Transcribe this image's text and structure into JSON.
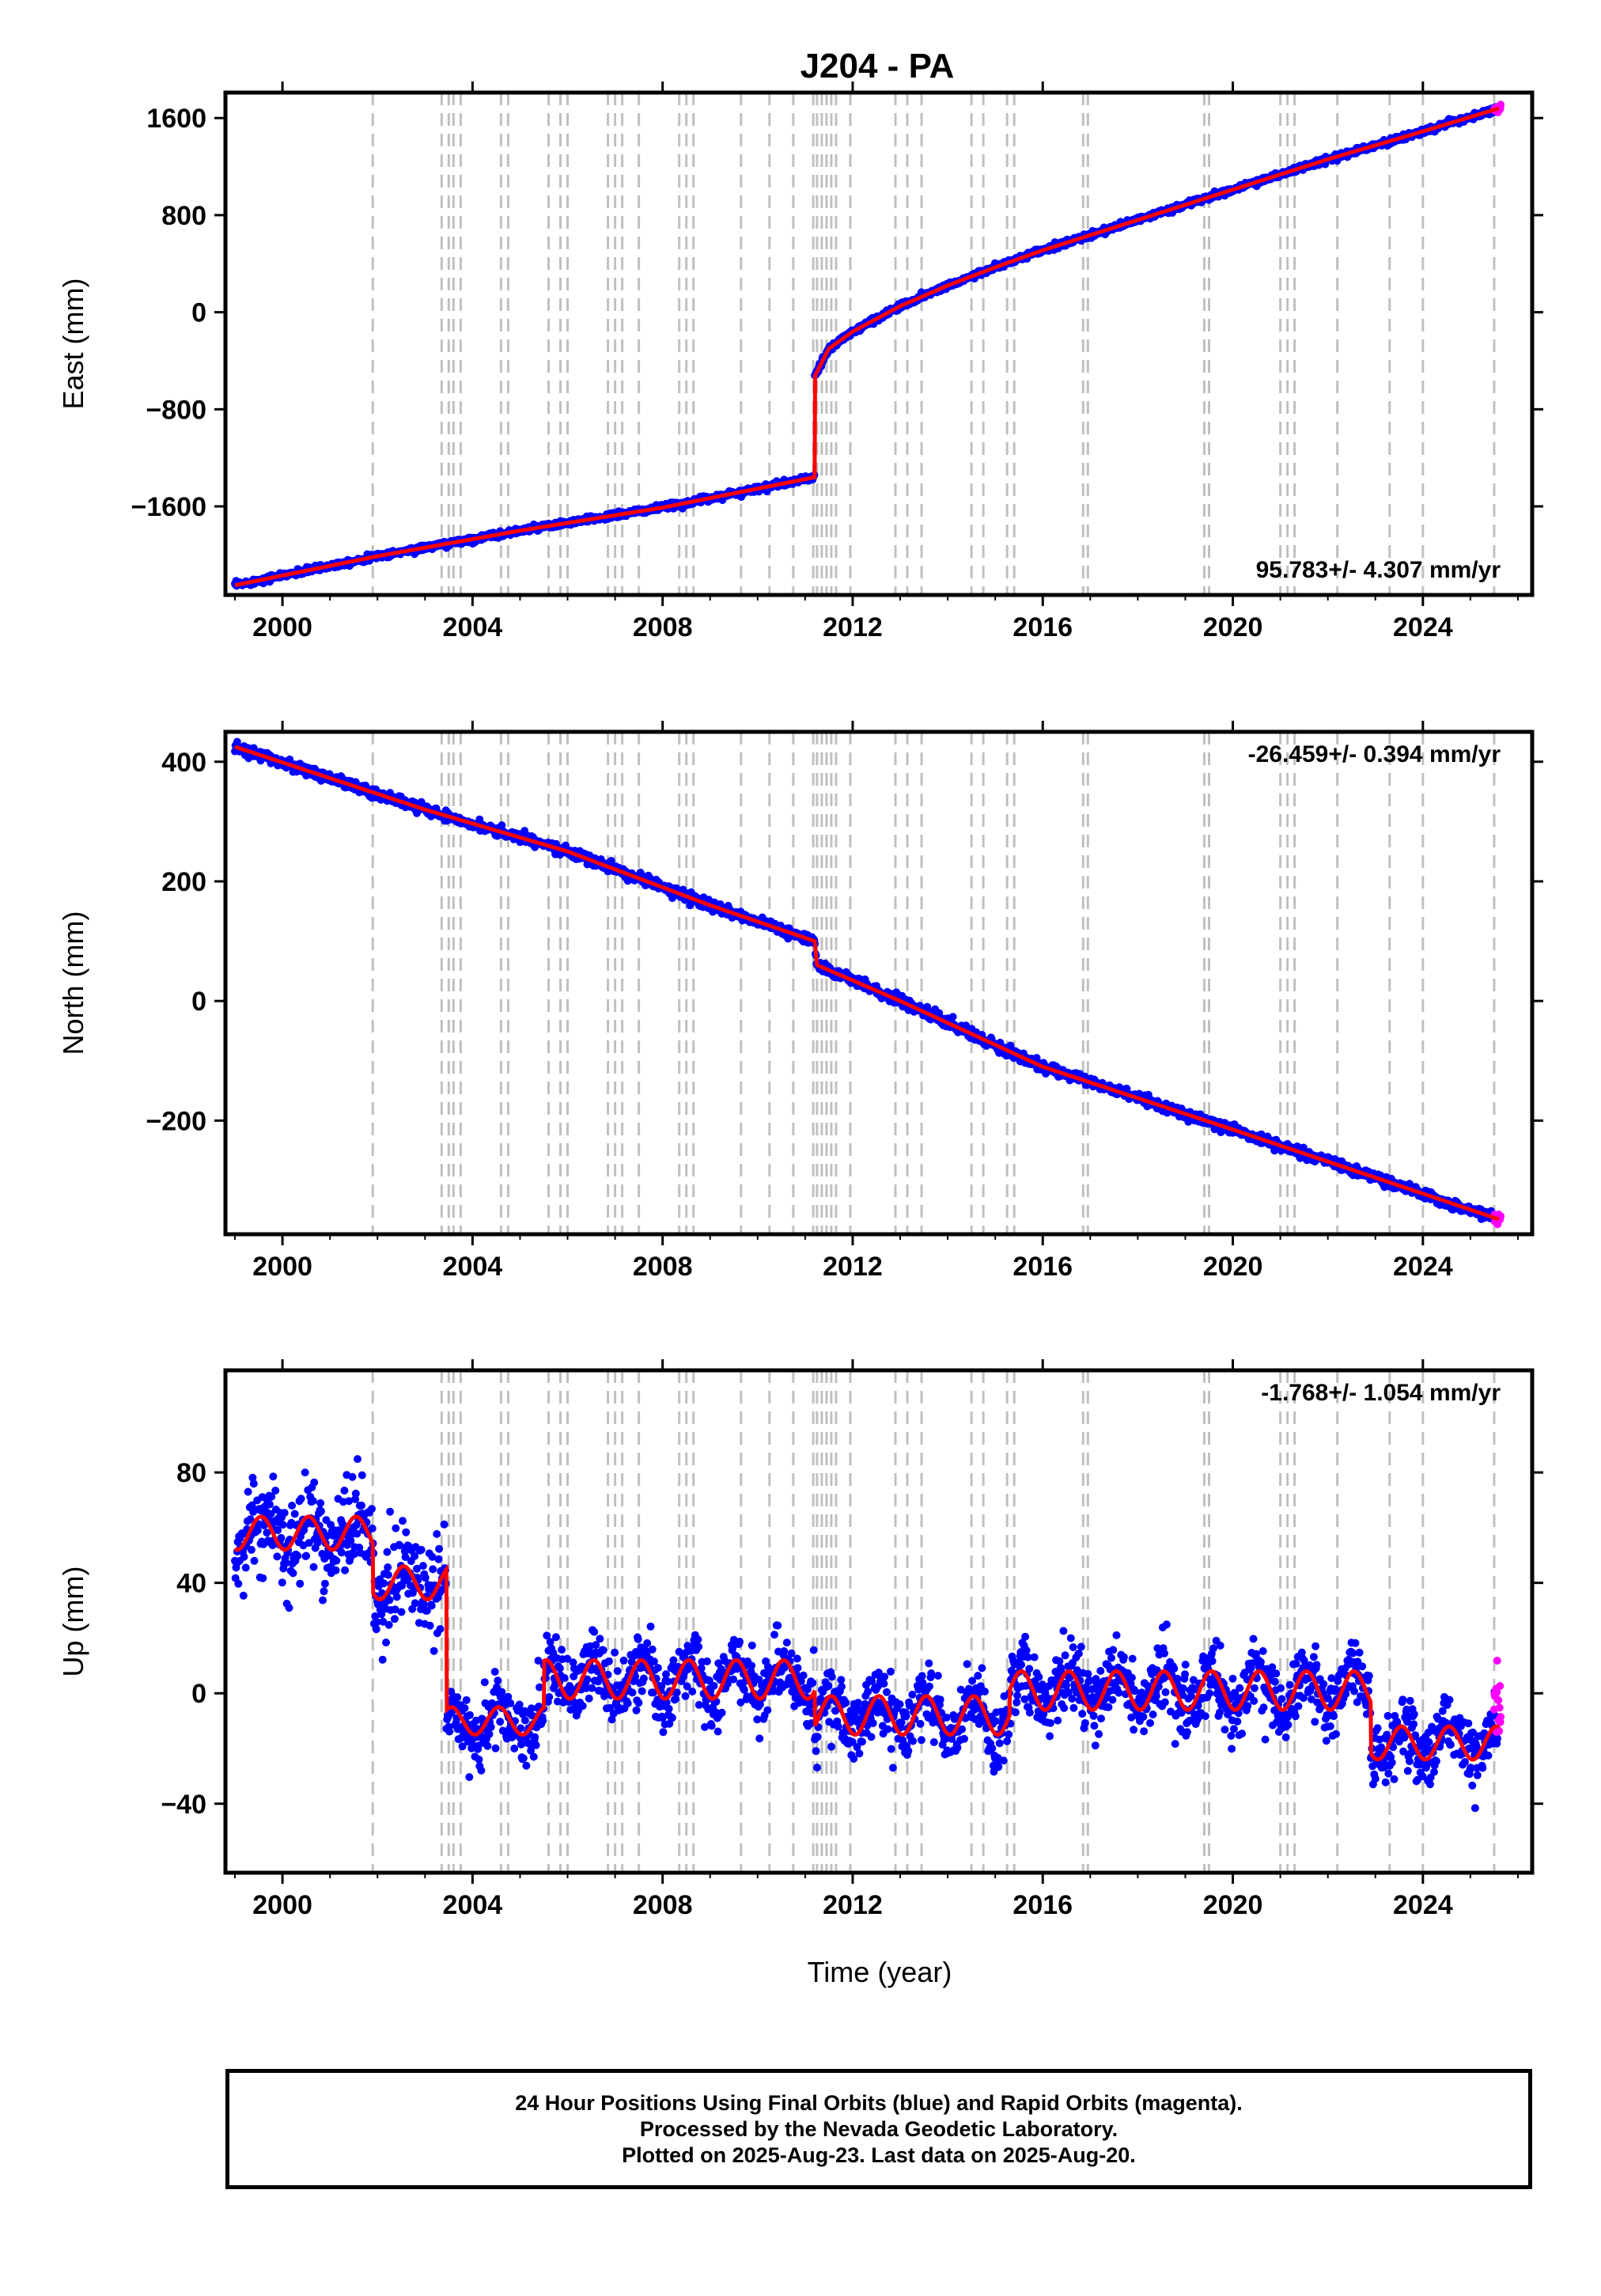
{
  "title": "J204 - PA",
  "xlabel": "Time (year)",
  "colors": {
    "final_orbits": "#0000ff",
    "rapid_orbits": "#ff00ff",
    "model": "#ff0000",
    "event_lines": "#c0c0c0"
  },
  "footer": {
    "line1": "24 Hour Positions Using Final Orbits (blue) and Rapid Orbits (magenta).",
    "line2": "Processed by the Nevada Geodetic Laboratory.",
    "line3": "Plotted on 2025-Aug-23. Last data on 2025-Aug-20."
  },
  "chart_data": [
    {
      "type": "scatter",
      "panel": "east",
      "ylabel": "East (mm)",
      "rate_label": "95.783+/- 4.307 mm/yr",
      "xlim": [
        1998.8,
        2026.3
      ],
      "ylim": [
        -2330,
        1810
      ],
      "xticks": [
        2000,
        2004,
        2008,
        2012,
        2016,
        2020,
        2024
      ],
      "yticks": [
        -1600,
        -800,
        0,
        800,
        1600
      ],
      "trend_points": [
        [
          1999.0,
          -2250
        ],
        [
          2002.0,
          -2010
        ],
        [
          2005.0,
          -1800
        ],
        [
          2008.0,
          -1610
        ],
        [
          2011.2,
          -1360
        ],
        [
          2011.2,
          -530
        ],
        [
          2011.5,
          -300
        ],
        [
          2012.0,
          -160
        ],
        [
          2013.0,
          50
        ],
        [
          2014.0,
          220
        ],
        [
          2015.0,
          370
        ],
        [
          2016.0,
          510
        ],
        [
          2018.0,
          760
        ],
        [
          2020.0,
          1010
        ],
        [
          2022.0,
          1260
        ],
        [
          2024.0,
          1490
        ],
        [
          2025.6,
          1680
        ]
      ],
      "series": [
        {
          "name": "Final Orbits",
          "color": "#0000ff"
        },
        {
          "name": "Rapid Orbits",
          "color": "#ff00ff"
        }
      ]
    },
    {
      "type": "scatter",
      "panel": "north",
      "ylabel": "North (mm)",
      "rate_label": "-26.459+/- 0.394 mm/yr",
      "xlim": [
        1998.8,
        2026.3
      ],
      "ylim": [
        -390,
        450
      ],
      "xticks": [
        2000,
        2004,
        2008,
        2012,
        2016,
        2020,
        2024
      ],
      "yticks": [
        -200,
        0,
        200,
        400
      ],
      "trend_points": [
        [
          1999.0,
          425
        ],
        [
          2003.0,
          320
        ],
        [
          2006.0,
          250
        ],
        [
          2009.0,
          160
        ],
        [
          2011.2,
          100
        ],
        [
          2011.25,
          60
        ],
        [
          2013.0,
          0
        ],
        [
          2016.0,
          -110
        ],
        [
          2020.0,
          -215
        ],
        [
          2025.6,
          -365
        ]
      ],
      "series": [
        {
          "name": "Final Orbits",
          "color": "#0000ff"
        },
        {
          "name": "Rapid Orbits",
          "color": "#ff00ff"
        }
      ]
    },
    {
      "type": "scatter",
      "panel": "up",
      "ylabel": "Up (mm)",
      "rate_label": "-1.768+/- 1.054 mm/yr",
      "xlim": [
        1998.8,
        2026.3
      ],
      "ylim": [
        -65,
        117
      ],
      "xticks": [
        2000,
        2004,
        2008,
        2012,
        2016,
        2020,
        2024
      ],
      "yticks": [
        -40,
        0,
        40,
        80
      ],
      "segments": [
        {
          "start": 1999.0,
          "end": 2001.9,
          "base": 58,
          "amp": 6,
          "noise": 9
        },
        {
          "start": 2001.9,
          "end": 2003.45,
          "base": 40,
          "amp": 6,
          "noise": 9
        },
        {
          "start": 2003.45,
          "end": 2005.5,
          "base": -10,
          "amp": 5,
          "noise": 6
        },
        {
          "start": 2005.5,
          "end": 2011.2,
          "base": 5,
          "amp": 7,
          "noise": 6
        },
        {
          "start": 2011.2,
          "end": 2015.3,
          "base": -8,
          "amp": 7,
          "noise": 6
        },
        {
          "start": 2015.3,
          "end": 2022.9,
          "base": 1,
          "amp": 7,
          "noise": 6
        },
        {
          "start": 2022.9,
          "end": 2025.6,
          "base": -18,
          "amp": 6,
          "noise": 6
        }
      ],
      "series": [
        {
          "name": "Final Orbits",
          "color": "#0000ff"
        },
        {
          "name": "Rapid Orbits",
          "color": "#ff00ff"
        }
      ]
    }
  ],
  "event_lines": [
    2001.9,
    2003.35,
    2003.5,
    2003.6,
    2003.75,
    2004.6,
    2004.75,
    2005.6,
    2005.85,
    2006.0,
    2006.85,
    2007.0,
    2007.15,
    2007.5,
    2008.35,
    2008.5,
    2008.65,
    2009.65,
    2010.25,
    2010.75,
    2011.17,
    2011.25,
    2011.35,
    2011.45,
    2011.55,
    2011.65,
    2011.95,
    2012.9,
    2013.15,
    2013.45,
    2014.5,
    2014.75,
    2015.25,
    2015.4,
    2016.85,
    2016.95,
    2019.4,
    2019.5,
    2021.0,
    2021.15,
    2021.3,
    2022.2,
    2023.3,
    2024.0,
    2025.5
  ]
}
